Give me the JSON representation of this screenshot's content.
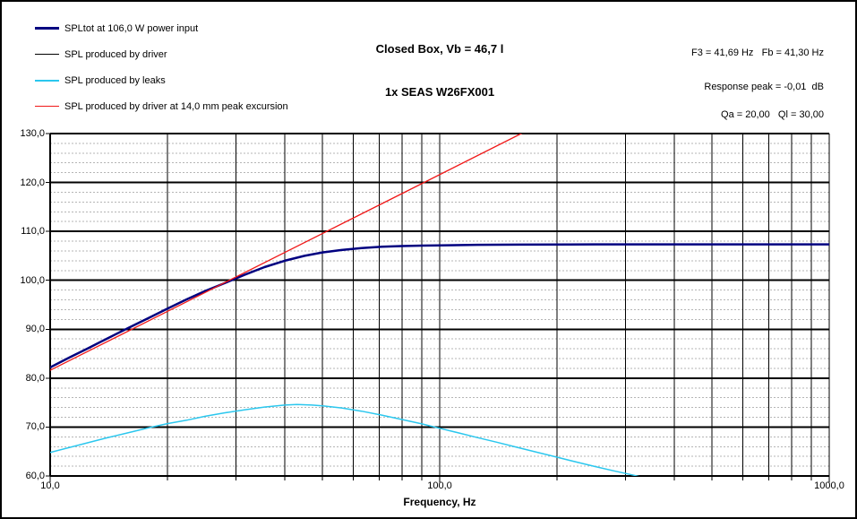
{
  "header": {
    "info_lines": [
      "F3 = 41,69 Hz   Fb = 41,30 Hz",
      "Response peak = -0,01  dB",
      "Qa = 20,00   Ql = 30,00"
    ]
  },
  "legend": {
    "items": [
      {
        "label": "SPLtot at 106,0 W power input",
        "color": "#000080",
        "weight": 3
      },
      {
        "label": "SPL produced by driver",
        "color": "#000000",
        "weight": 1
      },
      {
        "label": "SPL produced by leaks",
        "color": "#2bc7ee",
        "weight": 2
      },
      {
        "label": "SPL produced by driver at 14,0 mm peak excursion",
        "color": "#f01818",
        "weight": 1
      }
    ]
  },
  "chart_data": {
    "type": "line",
    "title": "Closed Box, Vb = 46,7 l",
    "subtitle": "1x SEAS W26FX001",
    "xlabel": "Frequency, Hz",
    "ylabel": "",
    "x_scale": "log",
    "xlim": [
      10,
      1000
    ],
    "ylim": [
      60,
      130
    ],
    "y_major_step": 10,
    "y_minor_step": 2,
    "grid": "on",
    "legend_position": "top-left",
    "x_ticks": [
      {
        "value": 10,
        "label": "10,0"
      },
      {
        "value": 100,
        "label": "100,0"
      },
      {
        "value": 1000,
        "label": "1000,0"
      }
    ],
    "y_ticks": [
      {
        "value": 60,
        "label": "60,0"
      },
      {
        "value": 70,
        "label": "70,0"
      },
      {
        "value": 80,
        "label": "80,0"
      },
      {
        "value": 90,
        "label": "90,0"
      },
      {
        "value": 100,
        "label": "100,0"
      },
      {
        "value": 110,
        "label": "110,0"
      },
      {
        "value": 120,
        "label": "120,0"
      },
      {
        "value": 130,
        "label": "130,0"
      }
    ],
    "annotations": [
      "F3 = 41,69 Hz",
      "Fb = 41,30 Hz",
      "Response peak = -0,01 dB",
      "Qa = 20,00",
      "Ql = 30,00"
    ],
    "series": [
      {
        "name": "SPL produced by driver",
        "color": "#000000",
        "width": 1,
        "points": [
          [
            10,
            82.2
          ],
          [
            11.2,
            84.2
          ],
          [
            12.5,
            86.1
          ],
          [
            14,
            88.1
          ],
          [
            16,
            90.4
          ],
          [
            18,
            92.4
          ],
          [
            20,
            94.2
          ],
          [
            22.4,
            96.1
          ],
          [
            25,
            97.8
          ],
          [
            28,
            99.4
          ],
          [
            31.5,
            101.1
          ],
          [
            35.5,
            102.7
          ],
          [
            40,
            104.0
          ],
          [
            45,
            105.0
          ],
          [
            50,
            105.7
          ],
          [
            56,
            106.2
          ],
          [
            63,
            106.6
          ],
          [
            71,
            106.85
          ],
          [
            80,
            107.0
          ],
          [
            90,
            107.1
          ],
          [
            100,
            107.15
          ],
          [
            125,
            107.25
          ],
          [
            160,
            107.3
          ],
          [
            250,
            107.35
          ],
          [
            400,
            107.35
          ],
          [
            630,
            107.35
          ],
          [
            1000,
            107.35
          ]
        ]
      },
      {
        "name": "SPLtot at 106,0 W power input",
        "color": "#000080",
        "width": 2.5,
        "points": [
          [
            10,
            82.2
          ],
          [
            11.2,
            84.2
          ],
          [
            12.5,
            86.1
          ],
          [
            14,
            88.1
          ],
          [
            16,
            90.4
          ],
          [
            18,
            92.4
          ],
          [
            20,
            94.2
          ],
          [
            22.4,
            96.1
          ],
          [
            25,
            97.8
          ],
          [
            28,
            99.4
          ],
          [
            31.5,
            101.1
          ],
          [
            35.5,
            102.7
          ],
          [
            40,
            104.0
          ],
          [
            45,
            105.0
          ],
          [
            50,
            105.7
          ],
          [
            56,
            106.2
          ],
          [
            63,
            106.6
          ],
          [
            71,
            106.85
          ],
          [
            80,
            107.0
          ],
          [
            90,
            107.1
          ],
          [
            100,
            107.15
          ],
          [
            125,
            107.25
          ],
          [
            160,
            107.3
          ],
          [
            250,
            107.35
          ],
          [
            400,
            107.35
          ],
          [
            630,
            107.35
          ],
          [
            1000,
            107.35
          ]
        ]
      },
      {
        "name": "SPL produced by leaks",
        "color": "#2bc7ee",
        "width": 1.5,
        "points": [
          [
            10,
            64.8
          ],
          [
            12.5,
            66.8
          ],
          [
            14,
            67.8
          ],
          [
            16,
            68.9
          ],
          [
            18,
            69.9
          ],
          [
            20,
            70.7
          ],
          [
            22.4,
            71.4
          ],
          [
            25,
            72.2
          ],
          [
            28,
            72.9
          ],
          [
            31.5,
            73.5
          ],
          [
            35.5,
            74.1
          ],
          [
            40,
            74.5
          ],
          [
            43,
            74.6
          ],
          [
            47,
            74.5
          ],
          [
            50,
            74.35
          ],
          [
            56,
            73.9
          ],
          [
            63,
            73.25
          ],
          [
            71,
            72.45
          ],
          [
            80,
            71.55
          ],
          [
            90,
            70.65
          ],
          [
            100,
            69.75
          ],
          [
            112,
            68.8
          ],
          [
            125,
            67.85
          ],
          [
            140,
            66.9
          ],
          [
            160,
            65.75
          ],
          [
            180,
            64.75
          ],
          [
            200,
            63.85
          ],
          [
            224,
            62.85
          ],
          [
            250,
            61.95
          ],
          [
            280,
            61.05
          ],
          [
            315,
            60.15
          ],
          [
            355,
            59.1
          ],
          [
            400,
            58.1
          ]
        ]
      },
      {
        "name": "SPL produced by driver at 14,0 mm peak excursion",
        "color": "#f01818",
        "width": 1.3,
        "points": [
          [
            10,
            81.6
          ],
          [
            20,
            93.64
          ],
          [
            40,
            105.68
          ],
          [
            80,
            117.72
          ],
          [
            162,
            130.0
          ],
          [
            200,
            133.66
          ]
        ]
      }
    ]
  }
}
